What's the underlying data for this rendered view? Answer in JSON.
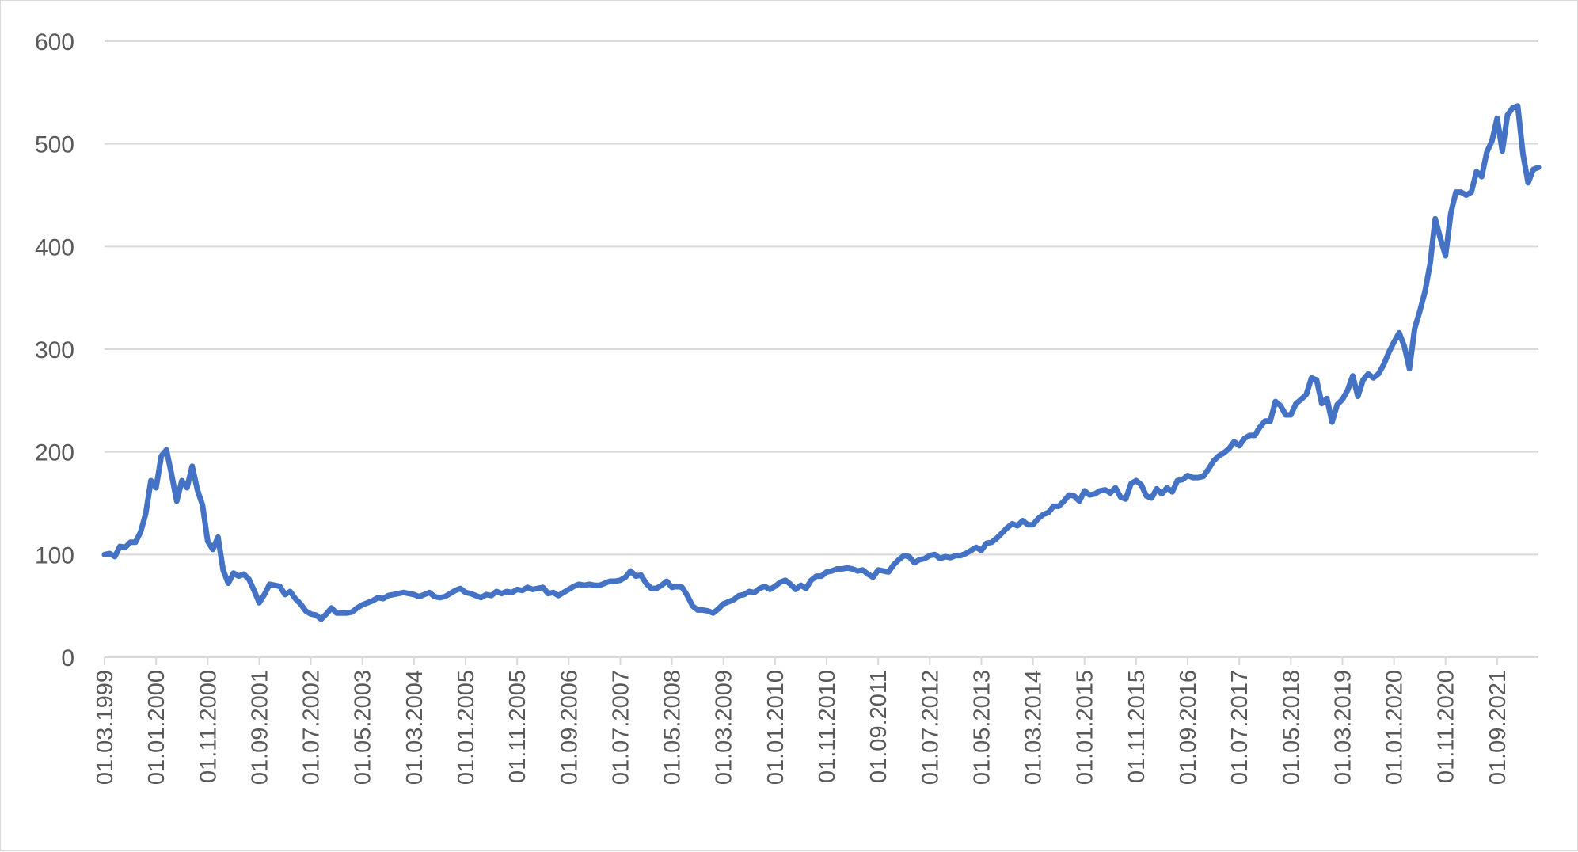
{
  "chart_data": {
    "type": "line",
    "title": "",
    "xlabel": "",
    "ylabel": "",
    "ylim": [
      0,
      600
    ],
    "y_ticks": [
      0,
      100,
      200,
      300,
      400,
      500,
      600
    ],
    "x_range": [
      "1999-03",
      "2022-05"
    ],
    "x_tick_labels": [
      "01.03.1999",
      "01.01.2000",
      "01.11.2000",
      "01.09.2001",
      "01.07.2002",
      "01.05.2003",
      "01.03.2004",
      "01.01.2005",
      "01.11.2005",
      "01.09.2006",
      "01.07.2007",
      "01.05.2008",
      "01.03.2009",
      "01.01.2010",
      "01.11.2010",
      "01.09.2011",
      "01.07.2012",
      "01.05.2013",
      "01.03.2014",
      "01.01.2015",
      "01.11.2015",
      "01.09.2016",
      "01.07.2017",
      "01.05.2018",
      "01.03.2019",
      "01.01.2020",
      "01.11.2020",
      "01.09.2021"
    ],
    "grid": true,
    "legend": "none",
    "series": [
      {
        "color": "#4472C4",
        "points": [
          [
            "1999-03",
            100
          ],
          [
            "1999-04",
            101
          ],
          [
            "1999-05",
            98
          ],
          [
            "1999-06",
            108
          ],
          [
            "1999-07",
            107
          ],
          [
            "1999-08",
            112
          ],
          [
            "1999-09",
            112
          ],
          [
            "1999-10",
            122
          ],
          [
            "1999-11",
            140
          ],
          [
            "1999-12",
            172
          ],
          [
            "2000-01",
            165
          ],
          [
            "2000-02",
            196
          ],
          [
            "2000-03",
            202
          ],
          [
            "2000-04",
            178
          ],
          [
            "2000-05",
            152
          ],
          [
            "2000-06",
            172
          ],
          [
            "2000-07",
            165
          ],
          [
            "2000-08",
            186
          ],
          [
            "2000-09",
            163
          ],
          [
            "2000-10",
            148
          ],
          [
            "2000-11",
            113
          ],
          [
            "2000-12",
            105
          ],
          [
            "2001-01",
            117
          ],
          [
            "2001-02",
            85
          ],
          [
            "2001-03",
            72
          ],
          [
            "2001-04",
            82
          ],
          [
            "2001-05",
            79
          ],
          [
            "2001-06",
            81
          ],
          [
            "2001-07",
            76
          ],
          [
            "2001-08",
            65
          ],
          [
            "2001-09",
            53
          ],
          [
            "2001-10",
            61
          ],
          [
            "2001-11",
            71
          ],
          [
            "2001-12",
            70
          ],
          [
            "2002-01",
            69
          ],
          [
            "2002-02",
            61
          ],
          [
            "2002-03",
            64
          ],
          [
            "2002-04",
            57
          ],
          [
            "2002-05",
            52
          ],
          [
            "2002-06",
            45
          ],
          [
            "2002-07",
            42
          ],
          [
            "2002-08",
            41
          ],
          [
            "2002-09",
            37
          ],
          [
            "2002-10",
            42
          ],
          [
            "2002-11",
            48
          ],
          [
            "2002-12",
            43
          ],
          [
            "2003-01",
            43
          ],
          [
            "2003-02",
            43
          ],
          [
            "2003-03",
            44
          ],
          [
            "2003-04",
            48
          ],
          [
            "2003-05",
            51
          ],
          [
            "2003-06",
            53
          ],
          [
            "2003-07",
            55
          ],
          [
            "2003-08",
            58
          ],
          [
            "2003-09",
            57
          ],
          [
            "2003-10",
            60
          ],
          [
            "2003-11",
            61
          ],
          [
            "2003-12",
            62
          ],
          [
            "2004-01",
            63
          ],
          [
            "2004-02",
            62
          ],
          [
            "2004-03",
            61
          ],
          [
            "2004-04",
            59
          ],
          [
            "2004-05",
            61
          ],
          [
            "2004-06",
            63
          ],
          [
            "2004-07",
            59
          ],
          [
            "2004-08",
            58
          ],
          [
            "2004-09",
            59
          ],
          [
            "2004-10",
            62
          ],
          [
            "2004-11",
            65
          ],
          [
            "2004-12",
            67
          ],
          [
            "2005-01",
            63
          ],
          [
            "2005-02",
            62
          ],
          [
            "2005-03",
            60
          ],
          [
            "2005-04",
            58
          ],
          [
            "2005-05",
            61
          ],
          [
            "2005-06",
            60
          ],
          [
            "2005-07",
            64
          ],
          [
            "2005-08",
            62
          ],
          [
            "2005-09",
            64
          ],
          [
            "2005-10",
            63
          ],
          [
            "2005-11",
            66
          ],
          [
            "2005-12",
            65
          ],
          [
            "2006-01",
            68
          ],
          [
            "2006-02",
            66
          ],
          [
            "2006-03",
            67
          ],
          [
            "2006-04",
            68
          ],
          [
            "2006-05",
            62
          ],
          [
            "2006-06",
            63
          ],
          [
            "2006-07",
            60
          ],
          [
            "2006-08",
            63
          ],
          [
            "2006-09",
            66
          ],
          [
            "2006-10",
            69
          ],
          [
            "2006-11",
            71
          ],
          [
            "2006-12",
            70
          ],
          [
            "2007-01",
            71
          ],
          [
            "2007-02",
            70
          ],
          [
            "2007-03",
            70
          ],
          [
            "2007-04",
            72
          ],
          [
            "2007-05",
            74
          ],
          [
            "2007-06",
            74
          ],
          [
            "2007-07",
            75
          ],
          [
            "2007-08",
            78
          ],
          [
            "2007-09",
            84
          ],
          [
            "2007-10",
            79
          ],
          [
            "2007-11",
            80
          ],
          [
            "2007-12",
            72
          ],
          [
            "2008-01",
            67
          ],
          [
            "2008-02",
            67
          ],
          [
            "2008-03",
            70
          ],
          [
            "2008-04",
            74
          ],
          [
            "2008-05",
            68
          ],
          [
            "2008-06",
            69
          ],
          [
            "2008-07",
            68
          ],
          [
            "2008-08",
            60
          ],
          [
            "2008-09",
            50
          ],
          [
            "2008-10",
            46
          ],
          [
            "2008-11",
            46
          ],
          [
            "2008-12",
            45
          ],
          [
            "2009-01",
            43
          ],
          [
            "2009-02",
            47
          ],
          [
            "2009-03",
            52
          ],
          [
            "2009-04",
            54
          ],
          [
            "2009-05",
            56
          ],
          [
            "2009-06",
            60
          ],
          [
            "2009-07",
            61
          ],
          [
            "2009-08",
            64
          ],
          [
            "2009-09",
            63
          ],
          [
            "2009-10",
            67
          ],
          [
            "2009-11",
            69
          ],
          [
            "2009-12",
            66
          ],
          [
            "2010-01",
            69
          ],
          [
            "2010-02",
            73
          ],
          [
            "2010-03",
            75
          ],
          [
            "2010-04",
            71
          ],
          [
            "2010-05",
            66
          ],
          [
            "2010-06",
            70
          ],
          [
            "2010-07",
            67
          ],
          [
            "2010-08",
            75
          ],
          [
            "2010-09",
            79
          ],
          [
            "2010-10",
            79
          ],
          [
            "2010-11",
            83
          ],
          [
            "2010-12",
            84
          ],
          [
            "2011-01",
            86
          ],
          [
            "2011-02",
            86
          ],
          [
            "2011-03",
            87
          ],
          [
            "2011-04",
            86
          ],
          [
            "2011-05",
            84
          ],
          [
            "2011-06",
            85
          ],
          [
            "2011-07",
            81
          ],
          [
            "2011-08",
            78
          ],
          [
            "2011-09",
            85
          ],
          [
            "2011-10",
            84
          ],
          [
            "2011-11",
            83
          ],
          [
            "2011-12",
            90
          ],
          [
            "2012-01",
            95
          ],
          [
            "2012-02",
            99
          ],
          [
            "2012-03",
            98
          ],
          [
            "2012-04",
            92
          ],
          [
            "2012-05",
            95
          ],
          [
            "2012-06",
            96
          ],
          [
            "2012-07",
            99
          ],
          [
            "2012-08",
            100
          ],
          [
            "2012-09",
            96
          ],
          [
            "2012-10",
            98
          ],
          [
            "2012-11",
            97
          ],
          [
            "2012-12",
            99
          ],
          [
            "2013-01",
            99
          ],
          [
            "2013-02",
            101
          ],
          [
            "2013-03",
            104
          ],
          [
            "2013-04",
            107
          ],
          [
            "2013-05",
            104
          ],
          [
            "2013-06",
            111
          ],
          [
            "2013-07",
            112
          ],
          [
            "2013-08",
            116
          ],
          [
            "2013-09",
            121
          ],
          [
            "2013-10",
            126
          ],
          [
            "2013-11",
            130
          ],
          [
            "2013-12",
            128
          ],
          [
            "2014-01",
            133
          ],
          [
            "2014-02",
            129
          ],
          [
            "2014-03",
            129
          ],
          [
            "2014-04",
            135
          ],
          [
            "2014-05",
            139
          ],
          [
            "2014-06",
            141
          ],
          [
            "2014-07",
            147
          ],
          [
            "2014-08",
            147
          ],
          [
            "2014-09",
            152
          ],
          [
            "2014-10",
            158
          ],
          [
            "2014-11",
            157
          ],
          [
            "2014-12",
            152
          ],
          [
            "2015-01",
            162
          ],
          [
            "2015-02",
            158
          ],
          [
            "2015-03",
            159
          ],
          [
            "2015-04",
            162
          ],
          [
            "2015-05",
            163
          ],
          [
            "2015-06",
            160
          ],
          [
            "2015-07",
            165
          ],
          [
            "2015-08",
            156
          ],
          [
            "2015-09",
            154
          ],
          [
            "2015-10",
            169
          ],
          [
            "2015-11",
            172
          ],
          [
            "2015-12",
            168
          ],
          [
            "2016-01",
            157
          ],
          [
            "2016-02",
            155
          ],
          [
            "2016-03",
            164
          ],
          [
            "2016-04",
            159
          ],
          [
            "2016-05",
            165
          ],
          [
            "2016-06",
            161
          ],
          [
            "2016-07",
            172
          ],
          [
            "2016-08",
            173
          ],
          [
            "2016-09",
            177
          ],
          [
            "2016-10",
            175
          ],
          [
            "2016-11",
            175
          ],
          [
            "2016-12",
            176
          ],
          [
            "2017-01",
            183
          ],
          [
            "2017-02",
            191
          ],
          [
            "2017-03",
            196
          ],
          [
            "2017-04",
            199
          ],
          [
            "2017-05",
            203
          ],
          [
            "2017-06",
            210
          ],
          [
            "2017-07",
            206
          ],
          [
            "2017-08",
            213
          ],
          [
            "2017-09",
            216
          ],
          [
            "2017-10",
            216
          ],
          [
            "2017-11",
            224
          ],
          [
            "2017-12",
            230
          ],
          [
            "2018-01",
            230
          ],
          [
            "2018-02",
            249
          ],
          [
            "2018-03",
            245
          ],
          [
            "2018-04",
            236
          ],
          [
            "2018-05",
            236
          ],
          [
            "2018-06",
            247
          ],
          [
            "2018-07",
            251
          ],
          [
            "2018-08",
            256
          ],
          [
            "2018-09",
            272
          ],
          [
            "2018-10",
            270
          ],
          [
            "2018-11",
            247
          ],
          [
            "2018-12",
            252
          ],
          [
            "2019-01",
            229
          ],
          [
            "2019-02",
            246
          ],
          [
            "2019-03",
            251
          ],
          [
            "2019-04",
            260
          ],
          [
            "2019-05",
            274
          ],
          [
            "2019-06",
            254
          ],
          [
            "2019-07",
            270
          ],
          [
            "2019-08",
            276
          ],
          [
            "2019-09",
            272
          ],
          [
            "2019-10",
            276
          ],
          [
            "2019-11",
            285
          ],
          [
            "2019-12",
            297
          ],
          [
            "2020-01",
            307
          ],
          [
            "2020-02",
            316
          ],
          [
            "2020-03",
            303
          ],
          [
            "2020-04",
            281
          ],
          [
            "2020-05",
            320
          ],
          [
            "2020-06",
            337
          ],
          [
            "2020-07",
            356
          ],
          [
            "2020-08",
            383
          ],
          [
            "2020-09",
            427
          ],
          [
            "2020-10",
            408
          ],
          [
            "2020-11",
            391
          ],
          [
            "2020-12",
            432
          ],
          [
            "2021-01",
            453
          ],
          [
            "2021-02",
            453
          ],
          [
            "2021-03",
            450
          ],
          [
            "2021-04",
            453
          ],
          [
            "2021-05",
            473
          ],
          [
            "2021-06",
            468
          ],
          [
            "2021-07",
            492
          ],
          [
            "2021-08",
            503
          ],
          [
            "2021-09",
            525
          ],
          [
            "2021-10",
            493
          ],
          [
            "2021-11",
            528
          ],
          [
            "2021-12",
            535
          ],
          [
            "2022-01",
            537
          ],
          [
            "2022-02",
            490
          ],
          [
            "2022-03",
            462
          ],
          [
            "2022-04",
            475
          ],
          [
            "2022-05",
            477
          ]
        ]
      }
    ]
  }
}
